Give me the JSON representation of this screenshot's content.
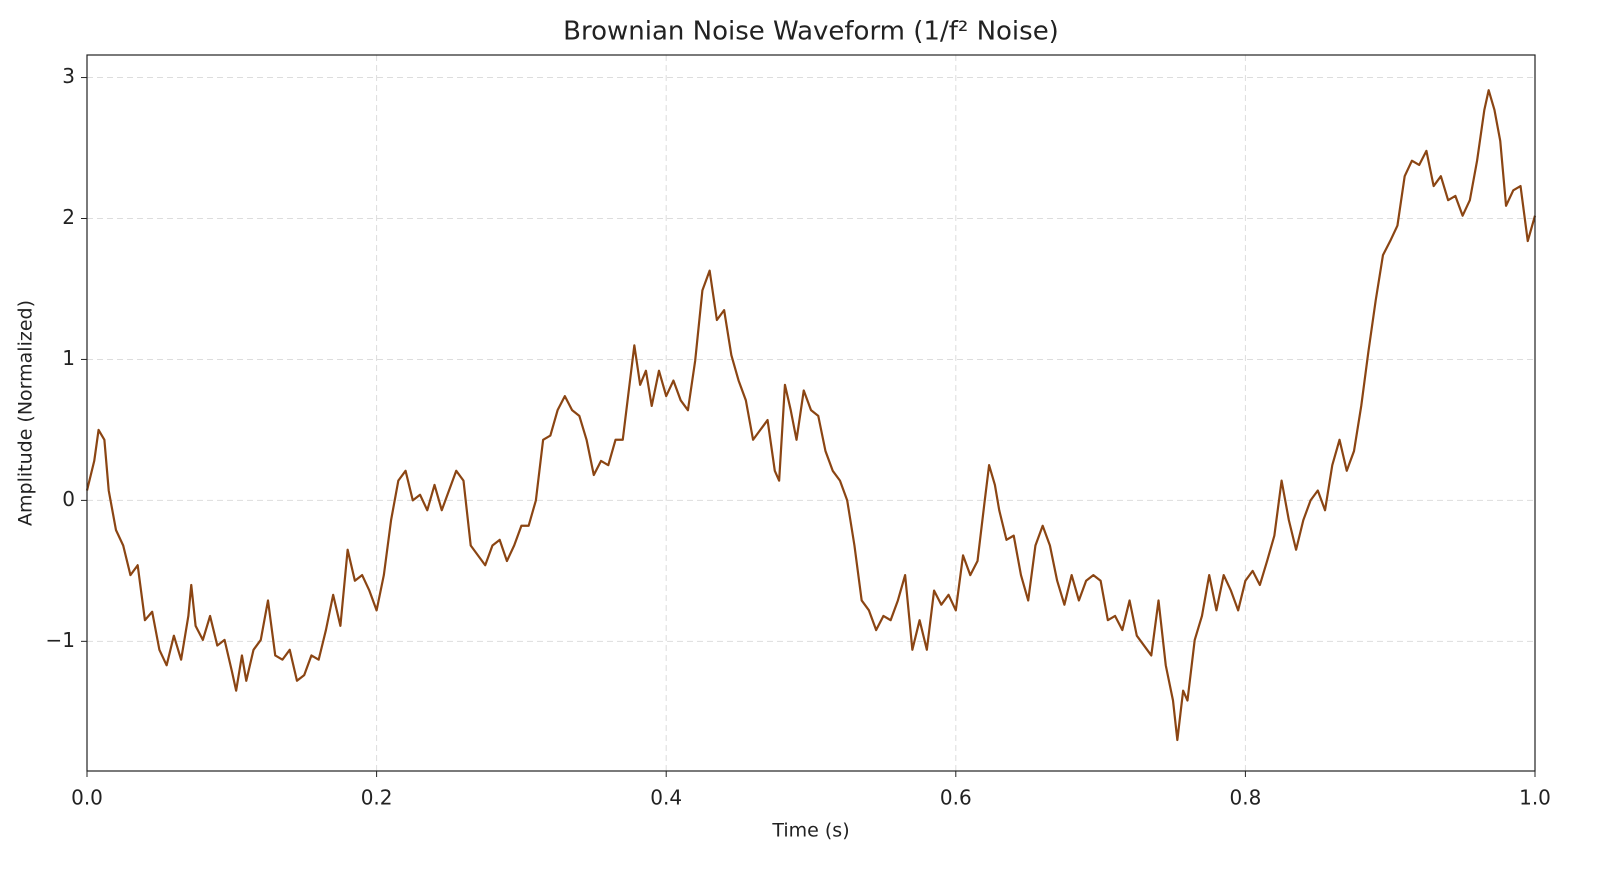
{
  "chart_data": {
    "type": "line",
    "title": "Brownian Noise Waveform (1/f² Noise)",
    "x_label": "Time (s)",
    "y_label": "Amplitude (Normalized)",
    "color": "#8b4513",
    "grid": true,
    "xlim": [
      0,
      1
    ],
    "ylim": [
      -1.92,
      3.16
    ],
    "xticks": [
      {
        "value": 0,
        "label": "0.0"
      },
      0.2,
      0.4,
      0.6,
      0.8,
      {
        "value": 1,
        "label": "1.0"
      }
    ],
    "yticks": [
      {
        "value": -1,
        "label": "−1"
      },
      0,
      1,
      2,
      3
    ],
    "x": [
      0,
      0.005,
      0.008,
      0.012,
      0.015,
      0.02,
      0.025,
      0.03,
      0.035,
      0.04,
      0.045,
      0.05,
      0.055,
      0.06,
      0.065,
      0.07,
      0.072,
      0.075,
      0.08,
      0.085,
      0.09,
      0.095,
      0.1,
      0.103,
      0.107,
      0.11,
      0.115,
      0.12,
      0.125,
      0.13,
      0.135,
      0.14,
      0.145,
      0.15,
      0.155,
      0.16,
      0.165,
      0.17,
      0.175,
      0.18,
      0.185,
      0.19,
      0.195,
      0.2,
      0.205,
      0.21,
      0.215,
      0.22,
      0.225,
      0.23,
      0.235,
      0.24,
      0.245,
      0.25,
      0.255,
      0.26,
      0.265,
      0.27,
      0.275,
      0.28,
      0.285,
      0.29,
      0.295,
      0.3,
      0.305,
      0.31,
      0.315,
      0.32,
      0.325,
      0.33,
      0.335,
      0.34,
      0.345,
      0.35,
      0.355,
      0.36,
      0.365,
      0.37,
      0.375,
      0.378,
      0.382,
      0.386,
      0.39,
      0.395,
      0.4,
      0.405,
      0.41,
      0.415,
      0.42,
      0.425,
      0.43,
      0.435,
      0.44,
      0.445,
      0.45,
      0.455,
      0.46,
      0.465,
      0.47,
      0.475,
      0.478,
      0.482,
      0.486,
      0.49,
      0.495,
      0.5,
      0.505,
      0.51,
      0.515,
      0.52,
      0.525,
      0.53,
      0.535,
      0.54,
      0.545,
      0.55,
      0.555,
      0.56,
      0.565,
      0.57,
      0.575,
      0.58,
      0.585,
      0.59,
      0.595,
      0.6,
      0.605,
      0.61,
      0.615,
      0.62,
      0.623,
      0.627,
      0.63,
      0.635,
      0.64,
      0.645,
      0.65,
      0.655,
      0.66,
      0.665,
      0.67,
      0.675,
      0.68,
      0.685,
      0.69,
      0.695,
      0.7,
      0.705,
      0.71,
      0.715,
      0.72,
      0.725,
      0.73,
      0.735,
      0.74,
      0.745,
      0.75,
      0.753,
      0.757,
      0.76,
      0.765,
      0.77,
      0.775,
      0.78,
      0.785,
      0.79,
      0.795,
      0.8,
      0.805,
      0.81,
      0.815,
      0.82,
      0.825,
      0.83,
      0.835,
      0.84,
      0.845,
      0.85,
      0.855,
      0.86,
      0.865,
      0.87,
      0.875,
      0.88,
      0.885,
      0.89,
      0.895,
      0.9,
      0.905,
      0.91,
      0.915,
      0.92,
      0.925,
      0.93,
      0.935,
      0.94,
      0.945,
      0.95,
      0.955,
      0.96,
      0.965,
      0.968,
      0.972,
      0.976,
      0.98,
      0.985,
      0.99,
      0.995,
      1
    ],
    "values": [
      0.07,
      0.28,
      0.5,
      0.43,
      0.07,
      -0.21,
      -0.32,
      -0.53,
      -0.46,
      -0.85,
      -0.79,
      -1.06,
      -1.17,
      -0.96,
      -1.13,
      -0.82,
      -0.6,
      -0.89,
      -0.99,
      -0.82,
      -1.03,
      -0.99,
      -1.21,
      -1.35,
      -1.1,
      -1.28,
      -1.06,
      -0.99,
      -0.71,
      -1.1,
      -1.13,
      -1.06,
      -1.28,
      -1.24,
      -1.1,
      -1.13,
      -0.92,
      -0.67,
      -0.89,
      -0.35,
      -0.57,
      -0.53,
      -0.64,
      -0.78,
      -0.53,
      -0.14,
      0.14,
      0.21,
      0,
      0.04,
      -0.07,
      0.11,
      -0.07,
      0.07,
      0.21,
      0.14,
      -0.32,
      -0.39,
      -0.46,
      -0.32,
      -0.28,
      -0.43,
      -0.32,
      -0.18,
      -0.18,
      0,
      0.43,
      0.46,
      0.64,
      0.74,
      0.64,
      0.6,
      0.43,
      0.18,
      0.28,
      0.25,
      0.43,
      0.43,
      0.85,
      1.1,
      0.82,
      0.92,
      0.67,
      0.92,
      0.74,
      0.85,
      0.71,
      0.64,
      0.99,
      1.49,
      1.63,
      1.28,
      1.35,
      1.03,
      0.85,
      0.71,
      0.43,
      0.5,
      0.57,
      0.21,
      0.14,
      0.82,
      0.64,
      0.43,
      0.78,
      0.64,
      0.6,
      0.35,
      0.21,
      0.14,
      0,
      -0.32,
      -0.71,
      -0.78,
      -0.92,
      -0.82,
      -0.85,
      -0.71,
      -0.53,
      -1.06,
      -0.85,
      -1.06,
      -0.64,
      -0.74,
      -0.67,
      -0.78,
      -0.39,
      -0.53,
      -0.43,
      0,
      0.25,
      0.11,
      -0.07,
      -0.28,
      -0.25,
      -0.53,
      -0.71,
      -0.32,
      -0.18,
      -0.32,
      -0.57,
      -0.74,
      -0.53,
      -0.71,
      -0.57,
      -0.53,
      -0.57,
      -0.85,
      -0.82,
      -0.92,
      -0.71,
      -0.96,
      -1.03,
      -1.1,
      -0.71,
      -1.17,
      -1.42,
      -1.7,
      -1.35,
      -1.42,
      -0.99,
      -0.82,
      -0.53,
      -0.78,
      -0.53,
      -0.64,
      -0.78,
      -0.57,
      -0.5,
      -0.6,
      -0.43,
      -0.25,
      0.14,
      -0.14,
      -0.35,
      -0.14,
      0,
      0.07,
      -0.07,
      0.25,
      0.43,
      0.21,
      0.35,
      0.67,
      1.06,
      1.42,
      1.74,
      1.84,
      1.95,
      2.3,
      2.41,
      2.38,
      2.48,
      2.23,
      2.3,
      2.13,
      2.16,
      2.02,
      2.13,
      2.41,
      2.77,
      2.91,
      2.77,
      2.55,
      2.09,
      2.2,
      2.23,
      1.84,
      2.02
    ]
  }
}
